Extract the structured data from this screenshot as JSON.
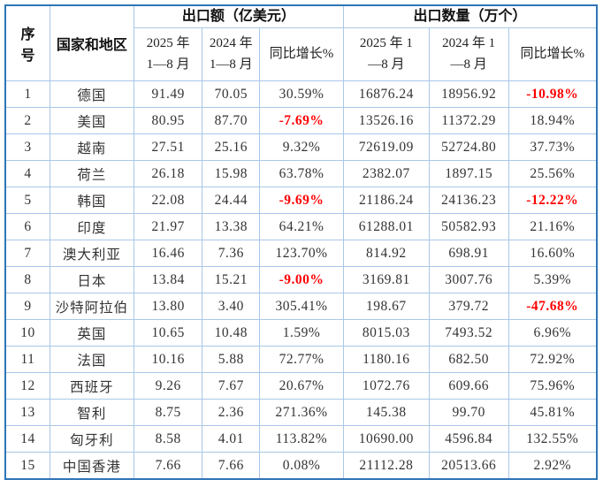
{
  "colors": {
    "outer_border": "#2e75b6",
    "inner_border": "#a9c7e7",
    "data_text": "#333333",
    "header_text": "#111111",
    "negative_text": "#ff0000",
    "background": "#ffffff"
  },
  "table": {
    "header": {
      "seq_line1": "序",
      "seq_line2": "号",
      "country": "国家和地区",
      "groups": [
        {
          "label": "出口额（亿美元）"
        },
        {
          "label": "出口数量（万个）"
        }
      ],
      "sub": [
        {
          "line1": "2025 年",
          "line2": "1—8 月"
        },
        {
          "line1": "2024 年",
          "line2": "1—8 月"
        },
        {
          "line1": "同比增长%"
        },
        {
          "line1": "2025 年 1",
          "line2": "—8 月"
        },
        {
          "line1": "2024 年 1",
          "line2": "—8 月"
        },
        {
          "line1": "同比增长%"
        }
      ]
    },
    "rows": [
      [
        "1",
        "德国",
        "91.49",
        "70.05",
        "30.59%",
        "16876.24",
        "18956.92",
        "-10.98%"
      ],
      [
        "2",
        "美国",
        "80.95",
        "87.70",
        "-7.69%",
        "13526.16",
        "11372.29",
        "18.94%"
      ],
      [
        "3",
        "越南",
        "27.51",
        "25.16",
        "9.32%",
        "72619.09",
        "52724.80",
        "37.73%"
      ],
      [
        "4",
        "荷兰",
        "26.18",
        "15.98",
        "63.78%",
        "2382.07",
        "1897.15",
        "25.56%"
      ],
      [
        "5",
        "韩国",
        "22.08",
        "24.44",
        "-9.69%",
        "21186.24",
        "24136.23",
        "-12.22%"
      ],
      [
        "6",
        "印度",
        "21.97",
        "13.38",
        "64.21%",
        "61288.01",
        "50582.93",
        "21.16%"
      ],
      [
        "7",
        "澳大利亚",
        "16.46",
        "7.36",
        "123.70%",
        "814.92",
        "698.91",
        "16.60%"
      ],
      [
        "8",
        "日本",
        "13.84",
        "15.21",
        "-9.00%",
        "3169.81",
        "3007.76",
        "5.39%"
      ],
      [
        "9",
        "沙特阿拉伯",
        "13.80",
        "3.40",
        "305.41%",
        "198.67",
        "379.72",
        "-47.68%"
      ],
      [
        "10",
        "英国",
        "10.65",
        "10.48",
        "1.59%",
        "8015.03",
        "7493.52",
        "6.96%"
      ],
      [
        "11",
        "法国",
        "10.16",
        "5.88",
        "72.77%",
        "1180.16",
        "682.50",
        "72.92%"
      ],
      [
        "12",
        "西班牙",
        "9.26",
        "7.67",
        "20.67%",
        "1072.76",
        "609.66",
        "75.96%"
      ],
      [
        "13",
        "智利",
        "8.75",
        "2.36",
        "271.36%",
        "145.38",
        "99.70",
        "45.81%"
      ],
      [
        "14",
        "匈牙利",
        "8.58",
        "4.01",
        "113.82%",
        "10690.00",
        "4596.84",
        "132.55%"
      ],
      [
        "15",
        "中国香港",
        "7.66",
        "7.66",
        "0.08%",
        "21112.28",
        "20513.66",
        "2.92%"
      ]
    ]
  }
}
